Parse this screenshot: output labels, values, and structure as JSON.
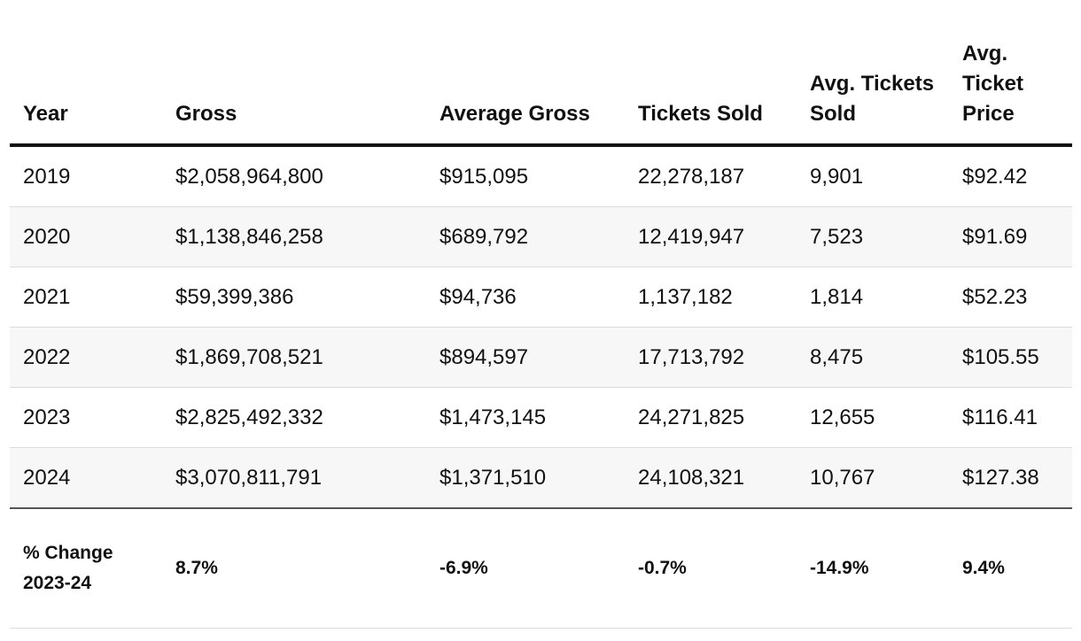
{
  "chart_data": {
    "type": "table",
    "columns": [
      "Year",
      "Gross",
      "Average Gross",
      "Tickets Sold",
      "Avg. Tickets Sold",
      "Avg. Ticket Price"
    ],
    "rows": [
      [
        "2019",
        "$2,058,964,800",
        "$915,095",
        "22,278,187",
        "9,901",
        "$92.42"
      ],
      [
        "2020",
        "$1,138,846,258",
        "$689,792",
        "12,419,947",
        "7,523",
        "$91.69"
      ],
      [
        "2021",
        "$59,399,386",
        "$94,736",
        "1,137,182",
        "1,814",
        "$52.23"
      ],
      [
        "2022",
        "$1,869,708,521",
        "$894,597",
        "17,713,792",
        "8,475",
        "$105.55"
      ],
      [
        "2023",
        "$2,825,492,332",
        "$1,473,145",
        "24,271,825",
        "12,655",
        "$116.41"
      ],
      [
        "2024",
        "$3,070,811,791",
        "$1,371,510",
        "24,108,321",
        "10,767",
        "$127.38"
      ]
    ],
    "footer": [
      "% Change 2023-24",
      "8.7%",
      "-6.9%",
      "-0.7%",
      "-14.9%",
      "9.4%"
    ],
    "title": "",
    "xlabel": "",
    "ylabel": ""
  }
}
